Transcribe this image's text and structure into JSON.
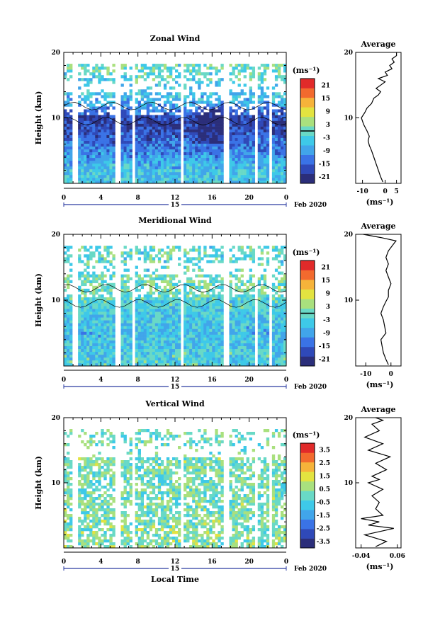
{
  "figure": {
    "x_axis_title": "Local Time",
    "date_label": "Feb 2020",
    "day_label": "15",
    "x_ticks": [
      "0",
      "4",
      "8",
      "12",
      "16",
      "20",
      "0"
    ]
  },
  "colors": {
    "colormap": [
      "#2b2e7a",
      "#2f49b8",
      "#3a73e6",
      "#41a5ea",
      "#3ec9e8",
      "#69d9c6",
      "#a9e07e",
      "#e3e340",
      "#f6b33a",
      "#f26a2e",
      "#e12a2a"
    ],
    "contour": "#000000",
    "axis": "#000000"
  },
  "chart_data": [
    {
      "type": "heatmap",
      "title": "Zonal Wind",
      "ylabel": "Height (km)",
      "xlabel": "",
      "xlim": [
        0,
        24
      ],
      "ylim": [
        0,
        20
      ],
      "y_ticks": [
        "20",
        "10"
      ],
      "colorbar": {
        "unit": "(ms⁻¹)",
        "ticks": [
          "21",
          "15",
          "9",
          "3",
          "-3",
          "-9",
          "-15",
          "-21"
        ],
        "range": [
          -24,
          24
        ]
      },
      "field_summary": [
        {
          "height_km": 2,
          "value": -5
        },
        {
          "height_km": 5,
          "value": -12
        },
        {
          "height_km": 8,
          "value": -17
        },
        {
          "height_km": 10,
          "value": -19
        },
        {
          "height_km": 12,
          "value": -8
        },
        {
          "height_km": 15,
          "value": -3
        },
        {
          "height_km": 17,
          "value": -1
        }
      ],
      "profile": {
        "title": "Average",
        "xlabel": "(ms⁻¹)",
        "xlim": [
          -13,
          7
        ],
        "x_ticks": [
          "-10",
          "0",
          "5"
        ],
        "ylim": [
          0,
          20
        ],
        "y_ticks": [
          "20",
          "10"
        ],
        "points": [
          {
            "x": -1,
            "y": 0.2
          },
          {
            "x": -2,
            "y": 1
          },
          {
            "x": -3,
            "y": 2
          },
          {
            "x": -4,
            "y": 3
          },
          {
            "x": -5,
            "y": 4
          },
          {
            "x": -6,
            "y": 5
          },
          {
            "x": -7,
            "y": 5.8
          },
          {
            "x": -7.5,
            "y": 6.5
          },
          {
            "x": -7,
            "y": 7.2
          },
          {
            "x": -8,
            "y": 8
          },
          {
            "x": -9.5,
            "y": 9
          },
          {
            "x": -10,
            "y": 9.5
          },
          {
            "x": -10.5,
            "y": 10
          },
          {
            "x": -9,
            "y": 10.8
          },
          {
            "x": -8,
            "y": 11.5
          },
          {
            "x": -6,
            "y": 12.2
          },
          {
            "x": -5,
            "y": 13
          },
          {
            "x": -3,
            "y": 13.5
          },
          {
            "x": -2,
            "y": 14
          },
          {
            "x": -4,
            "y": 14.5
          },
          {
            "x": -2,
            "y": 15
          },
          {
            "x": 0,
            "y": 15.5
          },
          {
            "x": -3,
            "y": 16
          },
          {
            "x": 1,
            "y": 16.5
          },
          {
            "x": 0,
            "y": 17
          },
          {
            "x": 3,
            "y": 17.5
          },
          {
            "x": 2,
            "y": 18
          },
          {
            "x": 4,
            "y": 18.5
          },
          {
            "x": 3,
            "y": 19
          },
          {
            "x": 5,
            "y": 19.5
          },
          {
            "x": 5,
            "y": 20
          }
        ]
      }
    },
    {
      "type": "heatmap",
      "title": "Meridional Wind",
      "ylabel": "Height (km)",
      "xlabel": "",
      "xlim": [
        0,
        24
      ],
      "ylim": [
        0,
        20
      ],
      "y_ticks": [
        "20",
        "10"
      ],
      "colorbar": {
        "unit": "(ms⁻¹)",
        "ticks": [
          "21",
          "15",
          "9",
          "3",
          "-3",
          "-9",
          "-15",
          "-21"
        ],
        "range": [
          -24,
          24
        ]
      },
      "field_summary": [
        {
          "height_km": 2,
          "value": -3
        },
        {
          "height_km": 5,
          "value": -6
        },
        {
          "height_km": 8,
          "value": -4
        },
        {
          "height_km": 10,
          "value": -2
        },
        {
          "height_km": 12,
          "value": 1
        },
        {
          "height_km": 15,
          "value": -2
        },
        {
          "height_km": 17,
          "value": -1
        }
      ],
      "profile": {
        "title": "Average",
        "xlabel": "(ms⁻¹)",
        "xlim": [
          -14,
          4
        ],
        "x_ticks": [
          "-10",
          "0"
        ],
        "ylim": [
          0,
          20
        ],
        "y_ticks": [
          "20",
          "10"
        ],
        "points": [
          {
            "x": -1,
            "y": 0.2
          },
          {
            "x": -2,
            "y": 1
          },
          {
            "x": -3,
            "y": 2
          },
          {
            "x": -3.5,
            "y": 3
          },
          {
            "x": -4,
            "y": 4
          },
          {
            "x": -3,
            "y": 4.5
          },
          {
            "x": -2,
            "y": 5
          },
          {
            "x": -2.5,
            "y": 6
          },
          {
            "x": -3,
            "y": 7
          },
          {
            "x": -4,
            "y": 8
          },
          {
            "x": -3,
            "y": 9
          },
          {
            "x": -2,
            "y": 9.8
          },
          {
            "x": -1,
            "y": 10.5
          },
          {
            "x": -1,
            "y": 11.5
          },
          {
            "x": 0,
            "y": 12.5
          },
          {
            "x": -1,
            "y": 13.5
          },
          {
            "x": -2,
            "y": 14.5
          },
          {
            "x": -1,
            "y": 15.5
          },
          {
            "x": -2,
            "y": 16.5
          },
          {
            "x": -1,
            "y": 17.5
          },
          {
            "x": 1,
            "y": 18.5
          },
          {
            "x": 2,
            "y": 19
          },
          {
            "x": -4,
            "y": 19.5
          },
          {
            "x": -11,
            "y": 20
          }
        ]
      }
    },
    {
      "type": "heatmap",
      "title": "Vertical Wind",
      "ylabel": "Height (km)",
      "xlabel": "Local Time",
      "xlim": [
        0,
        24
      ],
      "ylim": [
        0,
        20
      ],
      "y_ticks": [
        "20",
        "10"
      ],
      "colorbar": {
        "unit": "(ms⁻¹)",
        "ticks": [
          "3.5",
          "2.5",
          "1.5",
          "0.5",
          "-0.5",
          "-1.5",
          "-2.5",
          "-3.5"
        ],
        "range": [
          -4,
          4
        ]
      },
      "field_summary": [
        {
          "height_km": 2,
          "value": 0.3
        },
        {
          "height_km": 6,
          "value": 0.2
        },
        {
          "height_km": 10,
          "value": 0.1
        },
        {
          "height_km": 14,
          "value": 0.2
        },
        {
          "height_km": 18,
          "value": 0.1
        }
      ],
      "profile": {
        "title": "Average",
        "xlabel": "(ms⁻¹)",
        "xlim": [
          -0.055,
          0.07
        ],
        "x_ticks": [
          "-0.04",
          "0.06"
        ],
        "ylim": [
          0,
          20
        ],
        "y_ticks": [
          "20",
          "10"
        ],
        "points": [
          {
            "x": 0.0,
            "y": 0.2
          },
          {
            "x": 0.03,
            "y": 1
          },
          {
            "x": -0.03,
            "y": 2
          },
          {
            "x": 0.05,
            "y": 3
          },
          {
            "x": -0.02,
            "y": 3.5
          },
          {
            "x": 0.01,
            "y": 4
          },
          {
            "x": -0.04,
            "y": 4.5
          },
          {
            "x": 0.02,
            "y": 5
          },
          {
            "x": 0.0,
            "y": 6
          },
          {
            "x": 0.01,
            "y": 7
          },
          {
            "x": -0.01,
            "y": 8
          },
          {
            "x": 0.02,
            "y": 9
          },
          {
            "x": -0.02,
            "y": 10
          },
          {
            "x": 0.01,
            "y": 10.5
          },
          {
            "x": -0.01,
            "y": 11
          },
          {
            "x": 0.03,
            "y": 12
          },
          {
            "x": 0.0,
            "y": 13
          },
          {
            "x": 0.04,
            "y": 14
          },
          {
            "x": -0.02,
            "y": 15
          },
          {
            "x": 0.02,
            "y": 16
          },
          {
            "x": -0.03,
            "y": 17
          },
          {
            "x": 0.01,
            "y": 18
          },
          {
            "x": -0.01,
            "y": 19
          },
          {
            "x": 0.02,
            "y": 19.6
          },
          {
            "x": 0.0,
            "y": 20
          }
        ]
      }
    }
  ]
}
